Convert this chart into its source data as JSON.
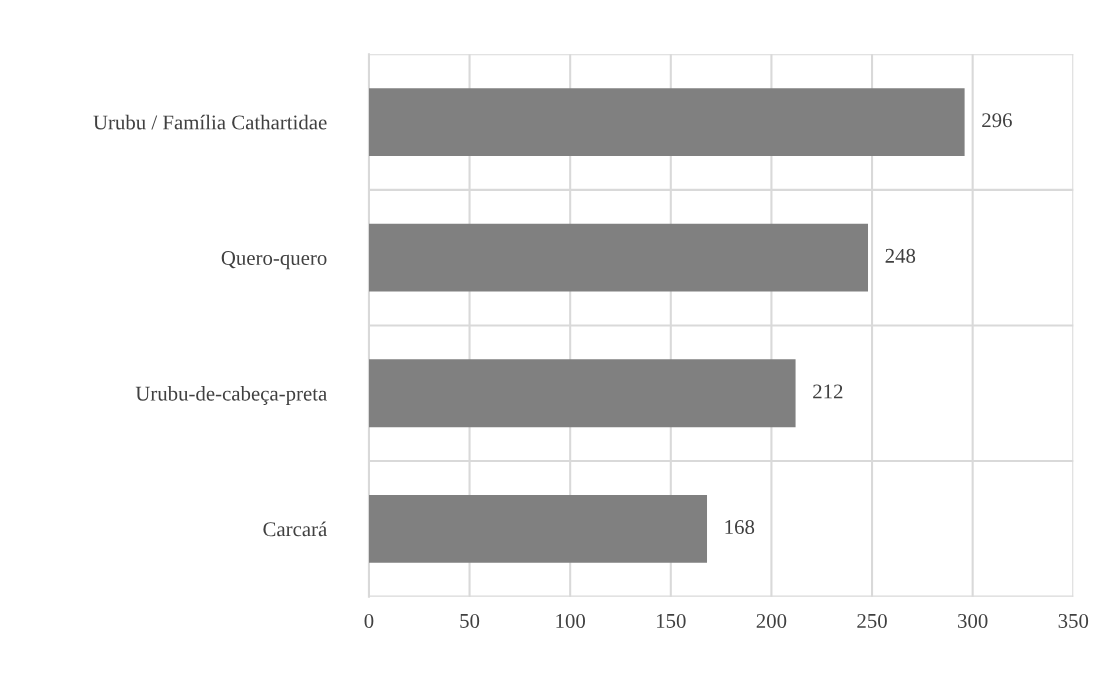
{
  "chart_data": {
    "type": "bar",
    "orientation": "horizontal",
    "categories": [
      "Urubu / Família Cathartidae",
      "Quero-quero",
      "Urubu-de-cabeça-preta",
      "Carcará"
    ],
    "values": [
      296,
      248,
      212,
      168
    ],
    "color": "#808080",
    "xlim": [
      0,
      350
    ],
    "xticks": [
      0,
      50,
      100,
      150,
      200,
      250,
      300,
      350
    ],
    "grid": true,
    "data_labels": true
  }
}
